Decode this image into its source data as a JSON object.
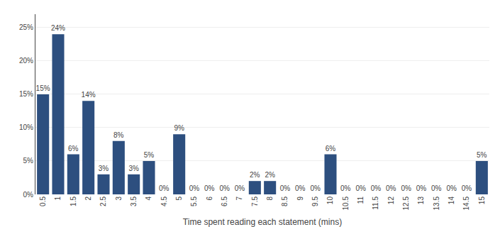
{
  "chart_data": {
    "type": "bar",
    "xlabel": "Time spent reading each statement (mins)",
    "categories": [
      "0.5",
      "1",
      "1.5",
      "2",
      "2.5",
      "3",
      "3.5",
      "4",
      "4.5",
      "5",
      "5.5",
      "6",
      "6.5",
      "7",
      "7.5",
      "8",
      "8.5",
      "9",
      "9.5",
      "10",
      "10.5",
      "11",
      "11.5",
      "12",
      "12.5",
      "13",
      "13.5",
      "14",
      "14.5",
      "15"
    ],
    "values": [
      15,
      24,
      6,
      14,
      3,
      8,
      3,
      5,
      0,
      9,
      0,
      0,
      0,
      0,
      2,
      2,
      0,
      0,
      0,
      6,
      0,
      0,
      0,
      0,
      0,
      0,
      0,
      0,
      0,
      5
    ],
    "value_labels": [
      "15%",
      "24%",
      "6%",
      "14%",
      "3%",
      "8%",
      "3%",
      "5%",
      "0%",
      "9%",
      "0%",
      "0%",
      "0%",
      "0%",
      "2%",
      "2%",
      "0%",
      "0%",
      "0%",
      "6%",
      "0%",
      "0%",
      "0%",
      "0%",
      "0%",
      "0%",
      "0%",
      "0%",
      "0%",
      "5%"
    ],
    "color": "#2D4F7F",
    "ylim": [
      0,
      27
    ],
    "yticks": [
      {
        "value": 0,
        "label": "0%"
      },
      {
        "value": 5,
        "label": "5%"
      },
      {
        "value": 10,
        "label": "10%"
      },
      {
        "value": 15,
        "label": "15%"
      },
      {
        "value": 20,
        "label": "20%"
      },
      {
        "value": 25,
        "label": "25%"
      }
    ],
    "grid": true,
    "data_labels": true
  }
}
